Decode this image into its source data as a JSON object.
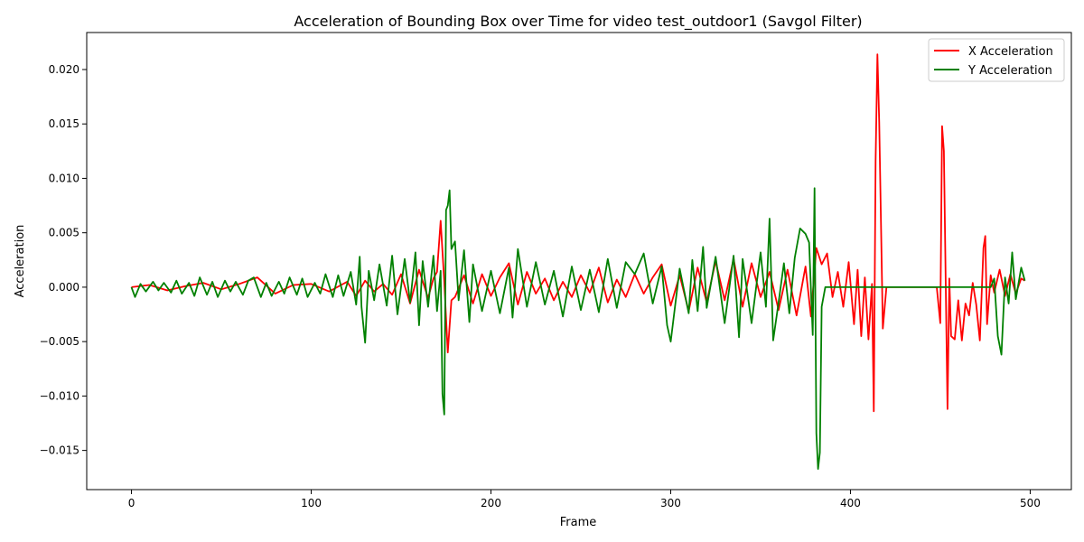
{
  "chart_data": {
    "type": "line",
    "title": "Acceleration of Bounding Box over Time for video test_outdoor1 (Savgol Filter)",
    "xlabel": "Frame",
    "ylabel": "Acceleration",
    "xlim": [
      -24.9,
      522.9
    ],
    "ylim": [
      -0.0186,
      0.0234
    ],
    "xticks": [
      0,
      100,
      200,
      300,
      400,
      500
    ],
    "xtick_labels": [
      "0",
      "100",
      "200",
      "300",
      "400",
      "500"
    ],
    "yticks": [
      -0.015,
      -0.01,
      -0.005,
      0.0,
      0.005,
      0.01,
      0.015,
      0.02
    ],
    "ytick_labels": [
      "−0.015",
      "−0.010",
      "−0.005",
      "0.000",
      "0.005",
      "0.010",
      "0.015",
      "0.020"
    ],
    "grid": false,
    "legend_position": "upper right",
    "series": [
      {
        "name": "X Acceleration",
        "color": "#ff0000",
        "x": [
          0,
          10,
          20,
          30,
          40,
          50,
          60,
          70,
          80,
          90,
          100,
          110,
          120,
          125,
          130,
          135,
          140,
          145,
          150,
          155,
          160,
          165,
          168,
          170,
          172,
          174,
          176,
          178,
          180,
          185,
          190,
          195,
          200,
          205,
          210,
          215,
          220,
          225,
          230,
          235,
          240,
          245,
          250,
          255,
          260,
          265,
          270,
          275,
          280,
          285,
          290,
          295,
          300,
          305,
          310,
          315,
          320,
          325,
          330,
          335,
          340,
          345,
          350,
          355,
          360,
          365,
          370,
          375,
          378,
          381,
          384,
          387,
          390,
          393,
          396,
          399,
          402,
          404,
          406,
          408,
          410,
          412,
          413,
          414,
          415,
          416,
          418,
          420,
          440,
          448,
          450,
          451,
          452,
          453,
          454,
          455,
          456,
          458,
          460,
          462,
          464,
          466,
          468,
          470,
          472,
          474,
          475,
          476,
          478,
          480,
          483,
          486,
          489,
          492,
          495,
          497
        ],
        "y": [
          0.0,
          0.0002,
          -0.0003,
          0.0001,
          0.0004,
          -0.0002,
          0.0003,
          0.0009,
          -0.0006,
          0.0002,
          0.0003,
          -0.0004,
          0.0005,
          -0.0008,
          0.0006,
          -0.0004,
          0.0003,
          -0.0007,
          0.0012,
          -0.0015,
          0.0016,
          -0.001,
          0.0008,
          0.0014,
          0.0061,
          0.0005,
          -0.006,
          -0.0012,
          -0.0009,
          0.0011,
          -0.0015,
          0.0012,
          -0.0008,
          0.0009,
          0.0022,
          -0.0016,
          0.0014,
          -0.0006,
          0.0008,
          -0.0012,
          0.0005,
          -0.0009,
          0.0011,
          -0.0005,
          0.0018,
          -0.0014,
          0.0007,
          -0.0009,
          0.0012,
          -0.0006,
          0.0009,
          0.0021,
          -0.0017,
          0.0011,
          -0.0022,
          0.0018,
          -0.0014,
          0.0024,
          -0.0012,
          0.0026,
          -0.0018,
          0.0022,
          -0.0009,
          0.0014,
          -0.0021,
          0.0016,
          -0.0026,
          0.0019,
          -0.0027,
          0.0036,
          0.0021,
          0.0031,
          -0.0009,
          0.0014,
          -0.0018,
          0.0023,
          -0.0034,
          0.0016,
          -0.0045,
          0.0009,
          -0.0048,
          0.0003,
          -0.0114,
          0.0116,
          0.0214,
          0.0152,
          -0.0038,
          0.0,
          0.0,
          0.0,
          -0.0033,
          0.0148,
          0.0125,
          0.0005,
          -0.0112,
          0.0008,
          -0.0045,
          -0.0048,
          -0.0012,
          -0.0049,
          -0.0015,
          -0.0026,
          0.0004,
          -0.0016,
          -0.0049,
          0.0036,
          0.0047,
          -0.0034,
          0.0011,
          -0.0005,
          0.0016,
          -0.0008,
          0.0012,
          -0.0006,
          0.0008,
          0.0006
        ]
      },
      {
        "name": "Y Acceleration",
        "color": "#008000",
        "x": [
          0,
          2,
          5,
          8,
          12,
          15,
          18,
          22,
          25,
          28,
          32,
          35,
          38,
          42,
          45,
          48,
          52,
          55,
          58,
          62,
          65,
          68,
          72,
          75,
          78,
          82,
          85,
          88,
          92,
          95,
          98,
          102,
          105,
          108,
          112,
          115,
          118,
          122,
          125,
          127,
          128,
          130,
          132,
          135,
          138,
          142,
          145,
          148,
          152,
          155,
          158,
          160,
          162,
          165,
          168,
          170,
          172,
          173,
          174,
          175,
          176,
          177,
          178,
          180,
          182,
          185,
          188,
          190,
          195,
          200,
          205,
          210,
          212,
          215,
          220,
          225,
          230,
          235,
          240,
          245,
          250,
          255,
          260,
          265,
          270,
          275,
          280,
          285,
          290,
          295,
          298,
          300,
          305,
          310,
          312,
          315,
          318,
          320,
          325,
          330,
          335,
          338,
          340,
          345,
          350,
          353,
          355,
          357,
          360,
          363,
          366,
          369,
          372,
          375,
          377,
          379,
          380,
          381,
          382,
          383,
          384,
          386,
          400,
          420,
          440,
          460,
          478,
          480,
          482,
          484,
          486,
          488,
          490,
          492,
          495,
          497
        ],
        "y": [
          0.0,
          -0.0009,
          0.0003,
          -0.0004,
          0.0005,
          -0.0003,
          0.0004,
          -0.0005,
          0.0006,
          -0.0006,
          0.0004,
          -0.0008,
          0.0009,
          -0.0007,
          0.0005,
          -0.0009,
          0.0006,
          -0.0004,
          0.0005,
          -0.0007,
          0.0006,
          0.0009,
          -0.0009,
          0.0004,
          -0.0008,
          0.0005,
          -0.0006,
          0.0009,
          -0.0007,
          0.0008,
          -0.0009,
          0.0004,
          -0.0006,
          0.0012,
          -0.0009,
          0.0011,
          -0.0008,
          0.0014,
          -0.0016,
          0.0028,
          -0.0018,
          -0.0051,
          0.0015,
          -0.0012,
          0.0021,
          -0.0017,
          0.0029,
          -0.0025,
          0.0026,
          -0.0014,
          0.0032,
          -0.0035,
          0.0024,
          -0.0018,
          0.0029,
          -0.0022,
          0.0015,
          -0.0098,
          -0.0117,
          0.0071,
          0.0075,
          0.0089,
          0.0035,
          0.0042,
          -0.0012,
          0.0034,
          -0.0032,
          0.0021,
          -0.0022,
          0.0015,
          -0.0024,
          0.0018,
          -0.0028,
          0.0035,
          -0.0018,
          0.0023,
          -0.0016,
          0.0015,
          -0.0027,
          0.0019,
          -0.0021,
          0.0016,
          -0.0023,
          0.0026,
          -0.0019,
          0.0023,
          0.0012,
          0.0031,
          -0.0015,
          0.0019,
          -0.0035,
          -0.005,
          0.0017,
          -0.0024,
          0.0025,
          -0.0022,
          0.0037,
          -0.0019,
          0.0028,
          -0.0033,
          0.0029,
          -0.0046,
          0.0026,
          -0.0033,
          0.0032,
          -0.0018,
          0.0063,
          -0.0049,
          -0.0014,
          0.0022,
          -0.0024,
          0.0027,
          0.0054,
          0.0049,
          0.0041,
          -0.0044,
          0.0091,
          -0.0134,
          -0.0167,
          -0.0152,
          -0.0018,
          0.0,
          0.0,
          0.0,
          0.0,
          0.0,
          0.0,
          0.0008,
          -0.0045,
          -0.0062,
          0.0009,
          -0.0015,
          0.0032,
          -0.0011,
          0.0018,
          0.0006
        ]
      }
    ]
  }
}
